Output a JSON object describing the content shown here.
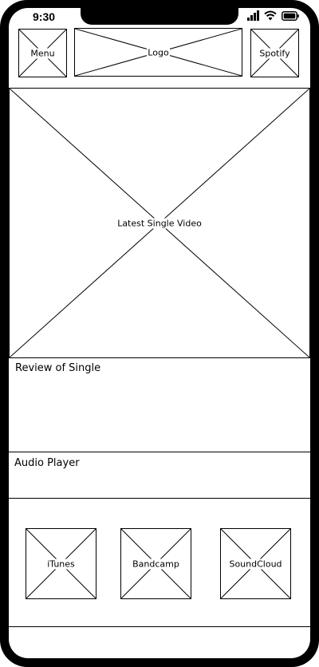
{
  "status_bar": {
    "time": "9:30",
    "icons": [
      "signal-icon",
      "wifi-icon",
      "battery-icon"
    ]
  },
  "header": {
    "menu_label": "Menu",
    "logo_label": "Logo",
    "spotify_label": "Spotify"
  },
  "hero": {
    "video_label": "Latest Single Video"
  },
  "review": {
    "title": "Review of Single"
  },
  "audio": {
    "title": "Audio Player"
  },
  "store_links": {
    "itunes_label": "iTunes",
    "bandcamp_label": "Bandcamp",
    "soundcloud_label": "SoundCloud"
  }
}
